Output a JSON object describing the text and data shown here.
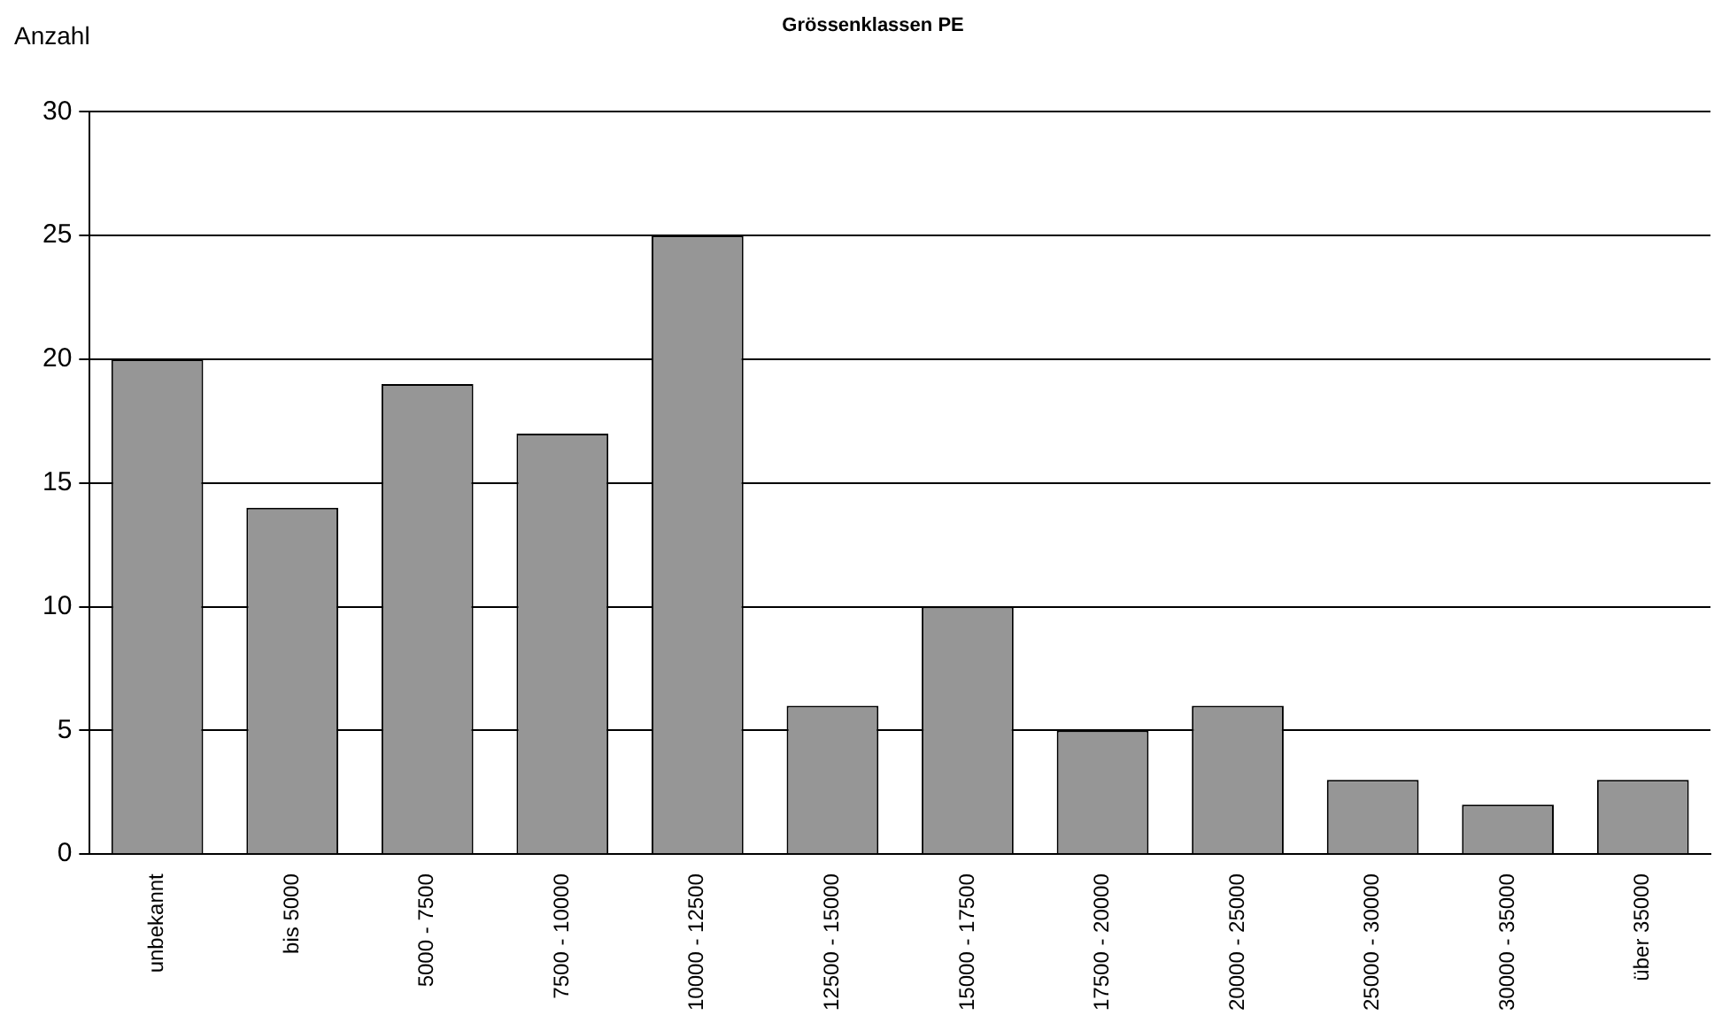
{
  "chart_data": {
    "type": "bar",
    "title": "Grössenklassen PE",
    "ylabel": "Anzahl",
    "categories": [
      "unbekannt",
      "bis 5000",
      "5000 - 7500",
      "7500 - 10000",
      "10000 - 12500",
      "12500 - 15000",
      "15000 - 17500",
      "17500 - 20000",
      "20000 - 25000",
      "25000 - 30000",
      "30000 - 35000",
      "über 35000"
    ],
    "values": [
      20,
      14,
      19,
      17,
      25,
      6,
      10,
      5,
      6,
      3,
      2,
      3
    ],
    "color": "#969696",
    "ylim": [
      0,
      30
    ],
    "yticks": [
      0,
      5,
      10,
      15,
      20,
      25,
      30
    ],
    "grid": "y",
    "legend": false
  }
}
